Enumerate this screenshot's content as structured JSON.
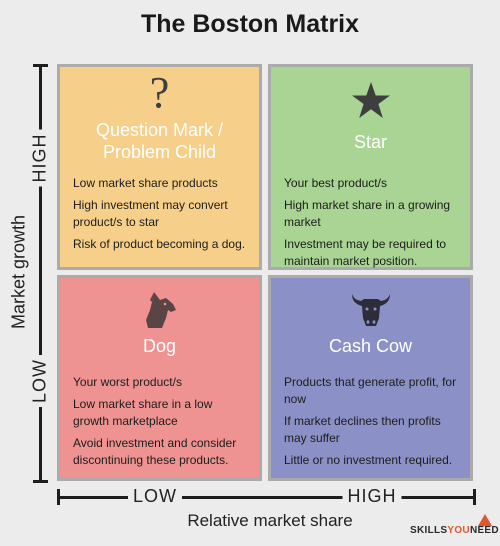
{
  "title": "The Boston Matrix",
  "y_axis": {
    "title": "Market growth",
    "high": "HIGH",
    "low": "LOW"
  },
  "x_axis": {
    "title": "Relative market share",
    "low": "LOW",
    "high": "HIGH"
  },
  "quadrants": {
    "question": {
      "icon": "question-mark-icon",
      "heading": [
        "Question Mark /",
        "Problem Child"
      ],
      "color": "#f6d08a",
      "items": [
        "Low market share products",
        "High investment may convert product/s to star",
        "Risk of product becoming a dog."
      ]
    },
    "star": {
      "icon": "star-icon",
      "heading": [
        "Star"
      ],
      "color": "#a9d494",
      "items": [
        "Your best product/s",
        "High market share in a growing market",
        "Investment may be required to maintain market position."
      ]
    },
    "dog": {
      "icon": "dog-icon",
      "heading": [
        "Dog"
      ],
      "color": "#ee9391",
      "items": [
        "Your worst product/s",
        "Low market share in a low growth marketplace",
        "Avoid investment and consider discontinuing these products."
      ]
    },
    "cow": {
      "icon": "cow-icon",
      "heading": [
        "Cash Cow"
      ],
      "color": "#8b91c6",
      "items": [
        "Products that generate profit, for now",
        "If market declines then profits may suffer",
        "Little or no investment required."
      ]
    }
  },
  "logo": {
    "part1": "SKILLS",
    "part2": "YOU",
    "part3": "NEED"
  }
}
